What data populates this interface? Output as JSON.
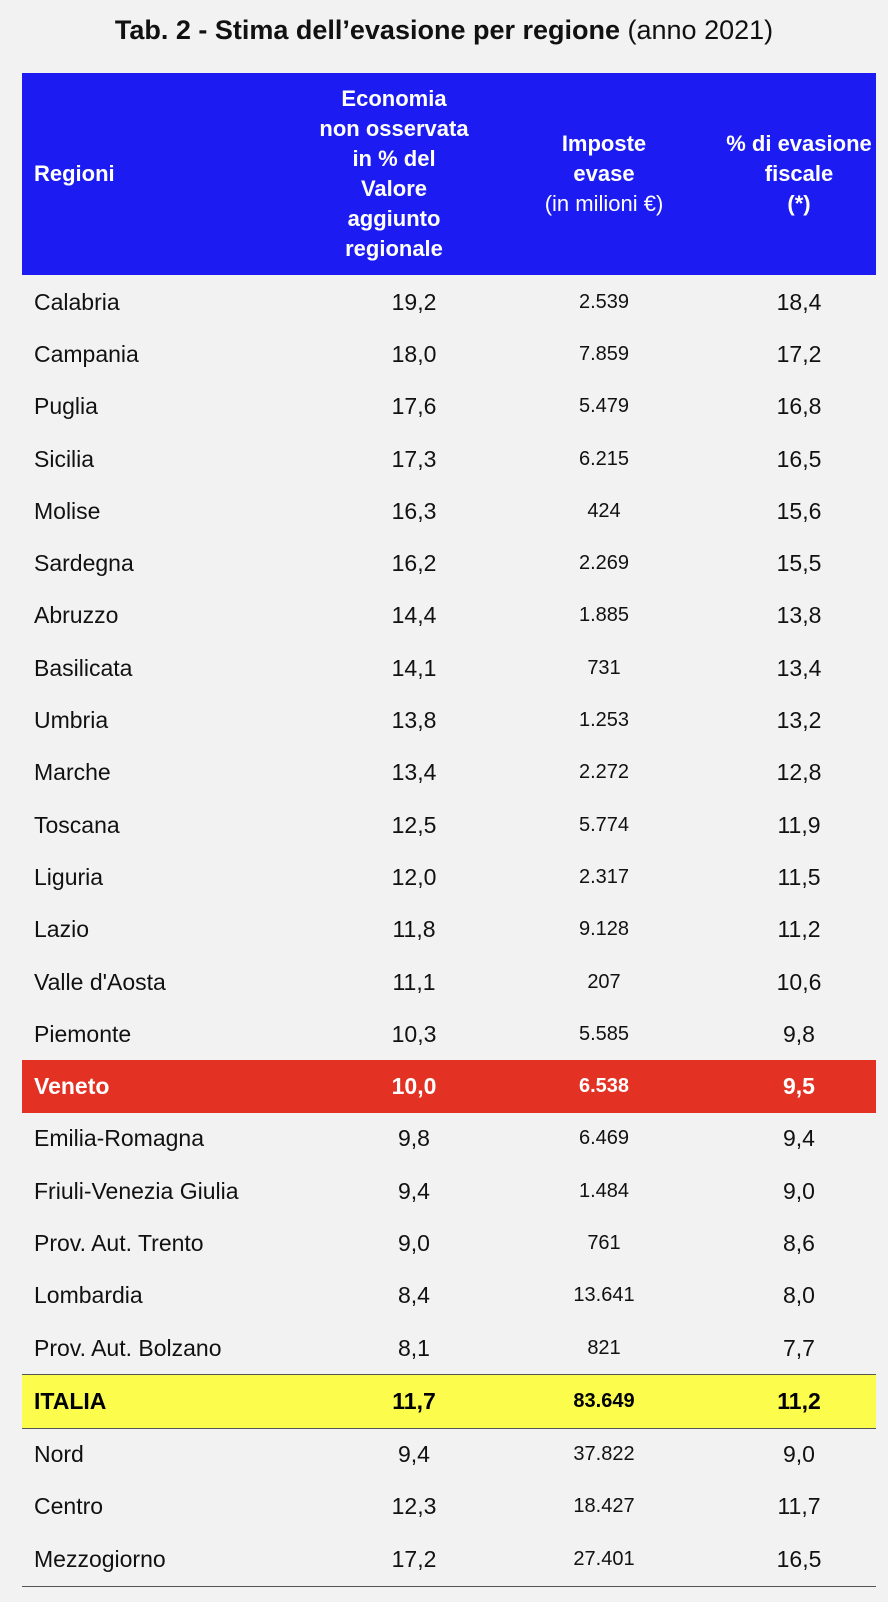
{
  "title": {
    "bold": "Tab. 2 - Stima dell’evasione per regione",
    "normal": "(anno 2021)"
  },
  "header": {
    "col1": "Regioni",
    "col2": [
      "Economia",
      "non osservata",
      "in % del",
      "Valore",
      "aggiunto",
      "regionale"
    ],
    "col3_bold": [
      "Imposte",
      "evase"
    ],
    "col3_light": "(in milioni €)",
    "col4": [
      "% di evasione",
      "fiscale",
      "(*)"
    ]
  },
  "colors": {
    "header_bg": "#1c1cf2",
    "veneto_bg": "#e33224",
    "italia_bg": "#fcfc4c"
  },
  "rows": [
    {
      "region": "Calabria",
      "eno": "19,2",
      "imposte": "2.539",
      "evasione": "18,4"
    },
    {
      "region": "Campania",
      "eno": "18,0",
      "imposte": "7.859",
      "evasione": "17,2"
    },
    {
      "region": "Puglia",
      "eno": "17,6",
      "imposte": "5.479",
      "evasione": "16,8"
    },
    {
      "region": "Sicilia",
      "eno": "17,3",
      "imposte": "6.215",
      "evasione": "16,5"
    },
    {
      "region": "Molise",
      "eno": "16,3",
      "imposte": "424",
      "evasione": "15,6"
    },
    {
      "region": "Sardegna",
      "eno": "16,2",
      "imposte": "2.269",
      "evasione": "15,5"
    },
    {
      "region": "Abruzzo",
      "eno": "14,4",
      "imposte": "1.885",
      "evasione": "13,8"
    },
    {
      "region": "Basilicata",
      "eno": "14,1",
      "imposte": "731",
      "evasione": "13,4"
    },
    {
      "region": "Umbria",
      "eno": "13,8",
      "imposte": "1.253",
      "evasione": "13,2"
    },
    {
      "region": "Marche",
      "eno": "13,4",
      "imposte": "2.272",
      "evasione": "12,8"
    },
    {
      "region": "Toscana",
      "eno": "12,5",
      "imposte": "5.774",
      "evasione": "11,9"
    },
    {
      "region": "Liguria",
      "eno": "12,0",
      "imposte": "2.317",
      "evasione": "11,5"
    },
    {
      "region": "Lazio",
      "eno": "11,8",
      "imposte": "9.128",
      "evasione": "11,2"
    },
    {
      "region": "Valle d'Aosta",
      "eno": "11,1",
      "imposte": "207",
      "evasione": "10,6"
    },
    {
      "region": "Piemonte",
      "eno": "10,3",
      "imposte": "5.585",
      "evasione": "9,8"
    },
    {
      "region": "Veneto",
      "eno": "10,0",
      "imposte": "6.538",
      "evasione": "9,5"
    },
    {
      "region": "Emilia-Romagna",
      "eno": "9,8",
      "imposte": "6.469",
      "evasione": "9,4"
    },
    {
      "region": "Friuli-Venezia Giulia",
      "eno": "9,4",
      "imposte": "1.484",
      "evasione": "9,0"
    },
    {
      "region": "Prov. Aut. Trento",
      "eno": "9,0",
      "imposte": "761",
      "evasione": "8,6"
    },
    {
      "region": "Lombardia",
      "eno": "8,4",
      "imposte": "13.641",
      "evasione": "8,0"
    },
    {
      "region": "Prov. Aut. Bolzano",
      "eno": "8,1",
      "imposte": "821",
      "evasione": "7,7"
    },
    {
      "region": "ITALIA",
      "eno": "11,7",
      "imposte": "83.649",
      "evasione": "11,2"
    },
    {
      "region": "Nord",
      "eno": "9,4",
      "imposte": "37.822",
      "evasione": "9,0"
    },
    {
      "region": "Centro",
      "eno": "12,3",
      "imposte": "18.427",
      "evasione": "11,7"
    },
    {
      "region": "Mezzogiorno",
      "eno": "17,2",
      "imposte": "27.401",
      "evasione": "16,5"
    }
  ]
}
